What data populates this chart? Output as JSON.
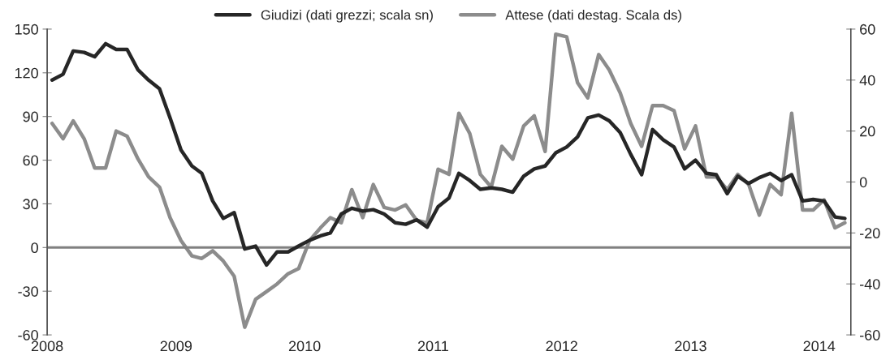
{
  "chart_data": {
    "type": "line",
    "x": [
      "2008-01-15",
      "2008-02-15",
      "2008-03-15",
      "2008-04-15",
      "2008-05-15",
      "2008-06-15",
      "2008-07-15",
      "2008-08-15",
      "2008-09-15",
      "2008-10-15",
      "2008-11-15",
      "2008-12-15",
      "2009-01-15",
      "2009-02-15",
      "2009-03-15",
      "2009-04-15",
      "2009-05-15",
      "2009-06-15",
      "2009-07-15",
      "2009-08-15",
      "2009-09-15",
      "2009-10-15",
      "2009-11-15",
      "2009-12-15",
      "2010-01-15",
      "2010-02-15",
      "2010-03-15",
      "2010-04-15",
      "2010-05-15",
      "2010-06-15",
      "2010-07-15",
      "2010-08-15",
      "2010-09-15",
      "2010-10-15",
      "2010-11-15",
      "2010-12-15",
      "2011-01-15",
      "2011-02-15",
      "2011-03-15",
      "2011-04-15",
      "2011-05-15",
      "2011-06-15",
      "2011-07-15",
      "2011-08-15",
      "2011-09-15",
      "2011-10-15",
      "2011-11-15",
      "2011-12-15",
      "2012-01-15",
      "2012-02-15",
      "2012-03-15",
      "2012-04-15",
      "2012-05-15",
      "2012-06-15",
      "2012-07-15",
      "2012-08-15",
      "2012-09-15",
      "2012-10-15",
      "2012-11-15",
      "2012-12-15",
      "2013-01-15",
      "2013-02-15",
      "2013-03-15",
      "2013-04-15",
      "2013-05-15",
      "2013-06-15",
      "2013-07-15",
      "2013-08-15",
      "2013-09-15",
      "2013-10-15",
      "2013-11-15",
      "2013-12-15",
      "2014-01-15",
      "2014-02-15",
      "2014-03-15"
    ],
    "series": [
      {
        "name": "Giudizi (dati grezzi; scala sn)",
        "color": "#262626",
        "values": [
          115,
          119,
          135,
          134,
          131,
          140,
          136,
          136,
          122,
          115,
          109,
          89,
          67,
          56,
          51,
          32,
          20,
          24,
          -1,
          1,
          -12,
          -3,
          -3,
          1,
          5,
          8,
          10,
          23,
          27,
          25,
          26,
          23,
          17,
          16,
          19,
          14,
          28,
          34,
          51,
          46,
          40,
          41,
          40,
          38,
          49,
          54,
          56,
          65,
          69,
          76,
          89,
          91,
          87,
          79,
          64,
          50,
          81,
          74,
          69,
          54,
          60,
          51,
          50,
          37,
          49,
          44,
          48,
          51,
          46,
          50,
          32,
          33,
          32,
          21,
          20
        ]
      },
      {
        "name": "Attese (dati destag. Scala ds)",
        "color": "#8c8c8c",
        "axis": "y2",
        "values": [
          23,
          17,
          24,
          17,
          5.5,
          5.5,
          20,
          18,
          9,
          2,
          -2,
          -14,
          -23,
          -29,
          -30,
          -27,
          -31,
          -37,
          -57,
          -46,
          -43,
          -40,
          -36,
          -34,
          -23,
          -18,
          -14,
          -16,
          -3,
          -14,
          -1,
          -10,
          -11,
          -9,
          -15,
          -16,
          5,
          3,
          27,
          19,
          3,
          -2,
          14,
          9,
          22,
          26,
          12,
          58,
          57,
          39,
          33,
          50,
          44,
          35,
          23,
          14,
          30,
          30,
          28,
          13,
          22,
          2,
          2,
          -3,
          3,
          -1,
          -13,
          -1,
          -5,
          27,
          -11,
          -11,
          -7,
          -18,
          -16
        ]
      }
    ],
    "xlim": [
      "2008-01-01",
      "2014-04-01"
    ],
    "xticks": [
      {
        "value": "2008-01-01",
        "label": "2008"
      },
      {
        "value": "2009-01-01",
        "label": "2009"
      },
      {
        "value": "2010-01-01",
        "label": "2010"
      },
      {
        "value": "2011-01-01",
        "label": "2011"
      },
      {
        "value": "2012-01-01",
        "label": "2012"
      },
      {
        "value": "2013-01-01",
        "label": "2013"
      },
      {
        "value": "2014-01-01",
        "label": "2014"
      }
    ],
    "ylim": [
      -60,
      150
    ],
    "yticks": [
      -60,
      -30,
      0,
      30,
      60,
      90,
      120,
      150
    ],
    "y2lim": [
      -60,
      60
    ],
    "y2ticks": [
      -60,
      -40,
      -20,
      0,
      20,
      40,
      60
    ],
    "ref_lines": [
      {
        "axis": "y",
        "value": 0,
        "color": "#808080"
      }
    ],
    "grid": false,
    "legend": "top",
    "line_style": "solid",
    "marker": "none"
  }
}
